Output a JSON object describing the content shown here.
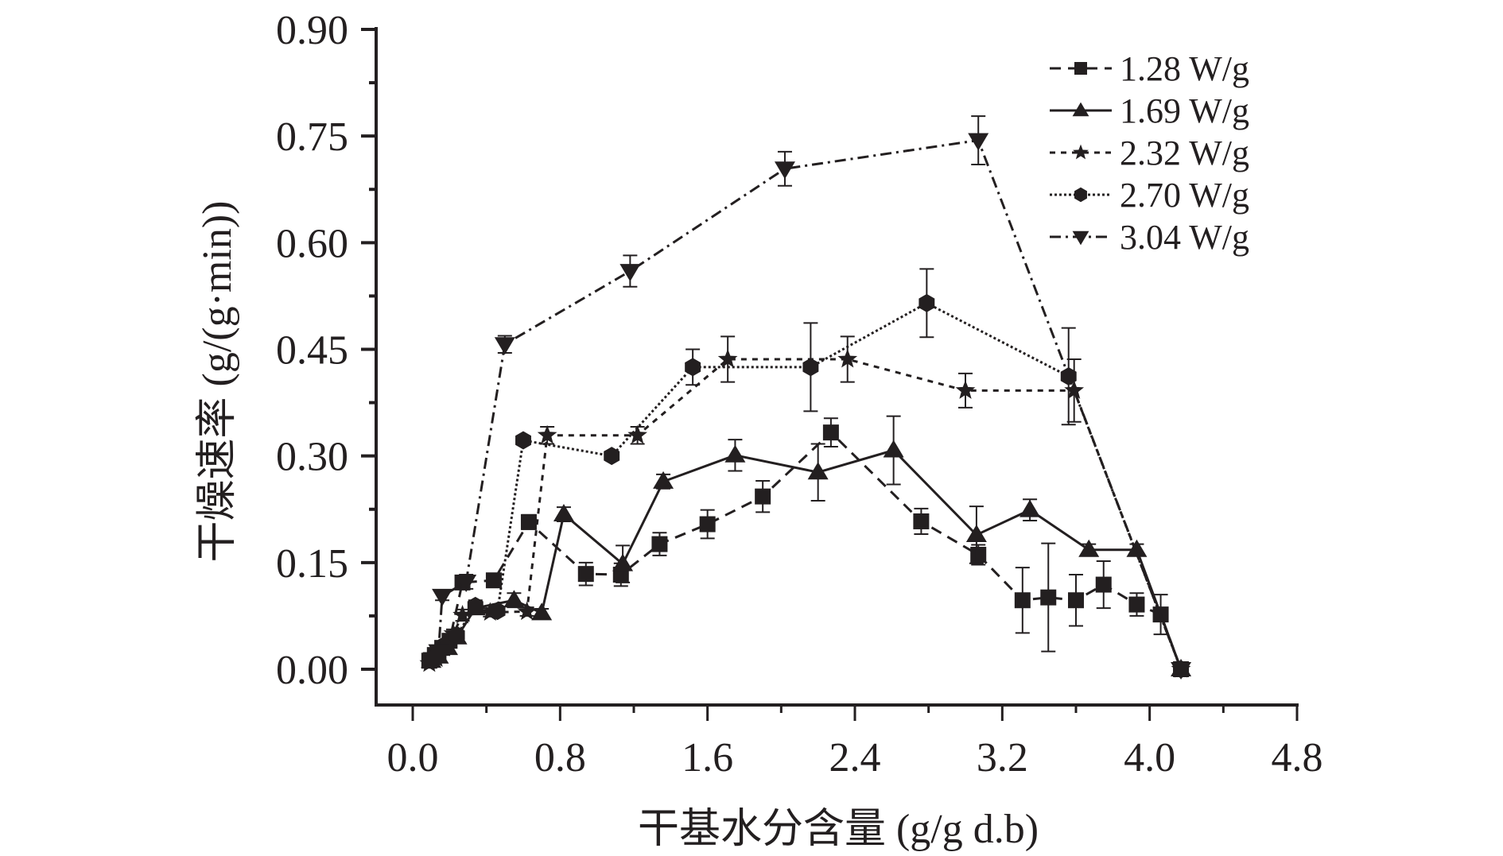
{
  "chart_data": {
    "type": "line",
    "title": "",
    "xlabel": "干基水分含量 (g/g d.b)",
    "ylabel": "干燥速率 (g/(g·min))",
    "xlim": [
      0.0,
      4.8
    ],
    "ylim": [
      0.0,
      0.9
    ],
    "xticks": [
      "0.0",
      "0.8",
      "1.6",
      "2.4",
      "3.2",
      "4.0",
      "4.8"
    ],
    "yticks": [
      "0.00",
      "0.15",
      "0.30",
      "0.45",
      "0.60",
      "0.75",
      "0.90"
    ],
    "grid": false,
    "legend_position": "top-right",
    "colors": {
      "ink": "#231f20",
      "background": "#ffffff"
    },
    "series": [
      {
        "name": "1.28 W/g",
        "marker": "square",
        "line": "dash",
        "points": [
          [
            0.09,
            0.012,
            0.004
          ],
          [
            0.12,
            0.02,
            0.005
          ],
          [
            0.16,
            0.03,
            0.006
          ],
          [
            0.2,
            0.04,
            0.006
          ],
          [
            0.27,
            0.122,
            0.008
          ],
          [
            0.44,
            0.125,
            0.006
          ],
          [
            0.63,
            0.207,
            0.01
          ],
          [
            0.94,
            0.134,
            0.016
          ],
          [
            1.13,
            0.133,
            0.016
          ],
          [
            1.34,
            0.176,
            0.016
          ],
          [
            1.6,
            0.204,
            0.02
          ],
          [
            1.9,
            0.243,
            0.022
          ],
          [
            2.27,
            0.333,
            0.02
          ],
          [
            2.76,
            0.208,
            0.018
          ],
          [
            3.07,
            0.161,
            0.014
          ],
          [
            3.31,
            0.097,
            0.046
          ],
          [
            3.45,
            0.101,
            0.076
          ],
          [
            3.6,
            0.097,
            0.036
          ],
          [
            3.75,
            0.119,
            0.033
          ],
          [
            3.93,
            0.091,
            0.016
          ],
          [
            4.06,
            0.077,
            0.028
          ],
          [
            4.17,
            0.0,
            0.0
          ]
        ]
      },
      {
        "name": "1.69 W/g",
        "marker": "triangle-up",
        "line": "solid",
        "points": [
          [
            0.1,
            0.012,
            0.004
          ],
          [
            0.14,
            0.018,
            0.005
          ],
          [
            0.19,
            0.03,
            0.006
          ],
          [
            0.24,
            0.045,
            0.006
          ],
          [
            0.34,
            0.086,
            0.008
          ],
          [
            0.55,
            0.097,
            0.01
          ],
          [
            0.7,
            0.079,
            0.006
          ],
          [
            0.82,
            0.218,
            0.01
          ],
          [
            1.14,
            0.148,
            0.026
          ],
          [
            1.36,
            0.264,
            0.01
          ],
          [
            1.75,
            0.301,
            0.022
          ],
          [
            2.2,
            0.277,
            0.04
          ],
          [
            2.61,
            0.308,
            0.048
          ],
          [
            3.06,
            0.189,
            0.04
          ],
          [
            3.35,
            0.224,
            0.015
          ],
          [
            3.67,
            0.168,
            0.008
          ],
          [
            3.93,
            0.168,
            0.008
          ],
          [
            4.17,
            0.0,
            0.0
          ]
        ]
      },
      {
        "name": "2.32 W/g",
        "marker": "star",
        "line": "short-dash",
        "points": [
          [
            0.09,
            0.008,
            0.004
          ],
          [
            0.13,
            0.015,
            0.005
          ],
          [
            0.17,
            0.03,
            0.006
          ],
          [
            0.22,
            0.05,
            0.006
          ],
          [
            0.27,
            0.076,
            0.008
          ],
          [
            0.42,
            0.08,
            0.006
          ],
          [
            0.62,
            0.081,
            0.006
          ],
          [
            0.73,
            0.329,
            0.012
          ],
          [
            1.22,
            0.329,
            0.012
          ],
          [
            1.71,
            0.436,
            0.032
          ],
          [
            2.36,
            0.436,
            0.032
          ],
          [
            3.0,
            0.392,
            0.024
          ],
          [
            3.59,
            0.392,
            0.044
          ],
          [
            4.17,
            0.0,
            0.0
          ]
        ]
      },
      {
        "name": "2.70 W/g",
        "marker": "hexagon",
        "line": "dot",
        "points": [
          [
            0.1,
            0.014,
            0.004
          ],
          [
            0.14,
            0.02,
            0.005
          ],
          [
            0.18,
            0.035,
            0.006
          ],
          [
            0.24,
            0.048,
            0.006
          ],
          [
            0.34,
            0.089,
            0.008
          ],
          [
            0.46,
            0.082,
            0.006
          ],
          [
            0.6,
            0.322,
            0.006
          ],
          [
            1.08,
            0.3,
            0.006
          ],
          [
            1.52,
            0.425,
            0.025
          ],
          [
            2.16,
            0.425,
            0.062
          ],
          [
            2.79,
            0.515,
            0.048
          ],
          [
            3.56,
            0.412,
            0.068
          ],
          [
            4.17,
            0.0,
            0.0
          ]
        ]
      },
      {
        "name": "3.04 W/g",
        "marker": "triangle-down",
        "line": "dash-dot",
        "points": [
          [
            0.11,
            0.014,
            0.004
          ],
          [
            0.14,
            0.025,
            0.005
          ],
          [
            0.16,
            0.103,
            0.006
          ],
          [
            0.29,
            0.123,
            0.01
          ],
          [
            0.5,
            0.457,
            0.012
          ],
          [
            1.18,
            0.56,
            0.022
          ],
          [
            2.02,
            0.704,
            0.024
          ],
          [
            3.07,
            0.744,
            0.034
          ],
          [
            4.17,
            0.0,
            0.0
          ]
        ]
      }
    ]
  }
}
